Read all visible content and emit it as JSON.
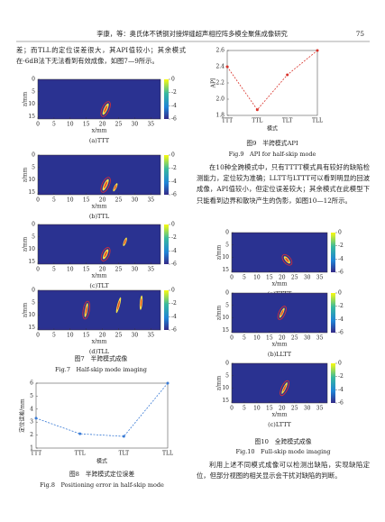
{
  "header": {
    "title": "李康，等：奥氏体不锈钢对接焊缝超声相控阵多模全聚焦成像研究",
    "page": "75"
  },
  "left_text": "差；而TLL的定位误差很大，其API值较小；其余模式在-6dB法下无法看到有效成像，如图7—9所示。",
  "right_text": "在10种全跨模式中，只有TTTT模式具有较好的缺陷检测能力，定位较为准确；LLTT与LTTT可以看到明显的回波成像，API值较小，但定位误差较大；其余模式在此模型下只能看到边界和散块产生的伪影，如图10—12所示。",
  "bottom_text": "利用上述不同模式成像可以检测出缺陷，实现缺陷定位，但部分视图的相关显示会干扰对缺陷的判断。",
  "imaging_axes": {
    "xlabel": "x/mm",
    "ylabel": "z/mm",
    "xlim": [
      0,
      38
    ],
    "xticks": [
      0,
      5,
      10,
      15,
      20,
      25,
      30,
      35
    ],
    "zlim": [
      0,
      16
    ],
    "zticks": [
      0,
      5,
      10,
      15
    ],
    "colorbar_ticks": [
      0,
      -2,
      -4,
      -6
    ]
  },
  "fig7": {
    "panels": [
      "(a)TTT",
      "(b)TTL",
      "(c)TLT",
      "(d)TLL"
    ],
    "caption_cn": "图7　半跨模式成像",
    "caption_en": "Fig.7　Half-skip mode imaging"
  },
  "fig8": {
    "type": "line",
    "xlabel": "模式",
    "ylabel": "定位误差/mm",
    "categories": [
      "TTT",
      "TTL",
      "TLT",
      "TLL"
    ],
    "values": [
      3.3,
      2.1,
      1.9,
      6.0
    ],
    "color": "#3a7bd5",
    "ylim": [
      1,
      6
    ],
    "yticks": [
      1,
      2,
      3,
      4,
      5,
      6
    ],
    "caption_cn": "图8　半跨模式定位误差",
    "caption_en": "Fig.8　Positioning error in half-skip mode"
  },
  "fig9": {
    "type": "line",
    "xlabel": "模式",
    "ylabel": "API",
    "categories": [
      "TTT",
      "TTL",
      "TLT",
      "TLL"
    ],
    "values": [
      2.4,
      1.87,
      2.3,
      2.6
    ],
    "color": "#d9322a",
    "ylim": [
      1.8,
      2.6
    ],
    "yticks": [
      1.8,
      {
        "value": 2,
        "label": "2.0"
      },
      2.2,
      2.4,
      2.6
    ],
    "caption_cn": "图9　半跨模式API",
    "caption_en": "Fig.9　API for half-skip mode"
  },
  "fig10": {
    "panels": [
      "(a)TTTT",
      "(b)LLTT",
      "(c)LTTT"
    ],
    "caption_cn": "图10　全跨模式成像",
    "caption_en": "Fig.10　Full-skip mode imaging"
  }
}
